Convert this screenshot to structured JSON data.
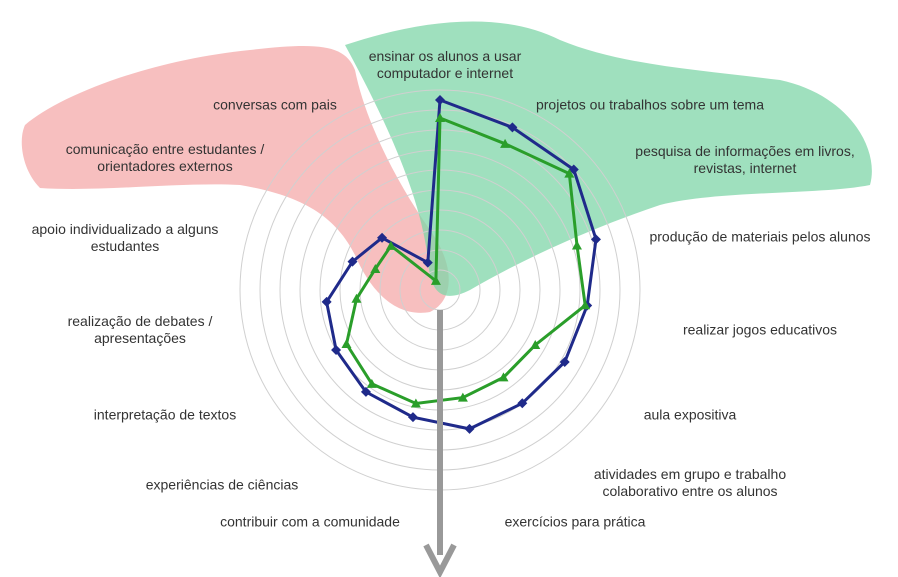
{
  "chart_data": {
    "type": "radar",
    "categories": [
      "ensinar os alunos a usar computador e internet",
      "projetos ou trabalhos sobre um tema",
      "pesquisa de informações em livros, revistas, internet",
      "produção de materiais pelos alunos",
      "realizar jogos educativos",
      "aula expositiva",
      "atividades em grupo e trabalho colaborativo entre os alunos",
      "exercícios para prática",
      "contribuir com a comunidade",
      "experiências de ciências",
      "interpretação de textos",
      "realização de debates / apresentações",
      "apoio individualizado a alguns estudantes",
      "comunicação entre estudantes / orientadores externos",
      "conversas com pais"
    ],
    "series": [
      {
        "color": "#1f2a8a",
        "values": [
          95,
          89,
          90,
          82,
          74,
          72,
          70,
          71,
          65,
          63,
          60,
          57,
          46,
          39,
          15
        ]
      },
      {
        "color": "#2a9e2a",
        "values": [
          86,
          80,
          87,
          72,
          73,
          55,
          54,
          55,
          58,
          58,
          54,
          42,
          34,
          33,
          5
        ]
      }
    ],
    "rlim": [
      0,
      100
    ],
    "rticks": [
      10,
      20,
      30,
      40,
      50,
      60,
      70,
      80,
      90,
      100
    ],
    "grid": true
  }
}
